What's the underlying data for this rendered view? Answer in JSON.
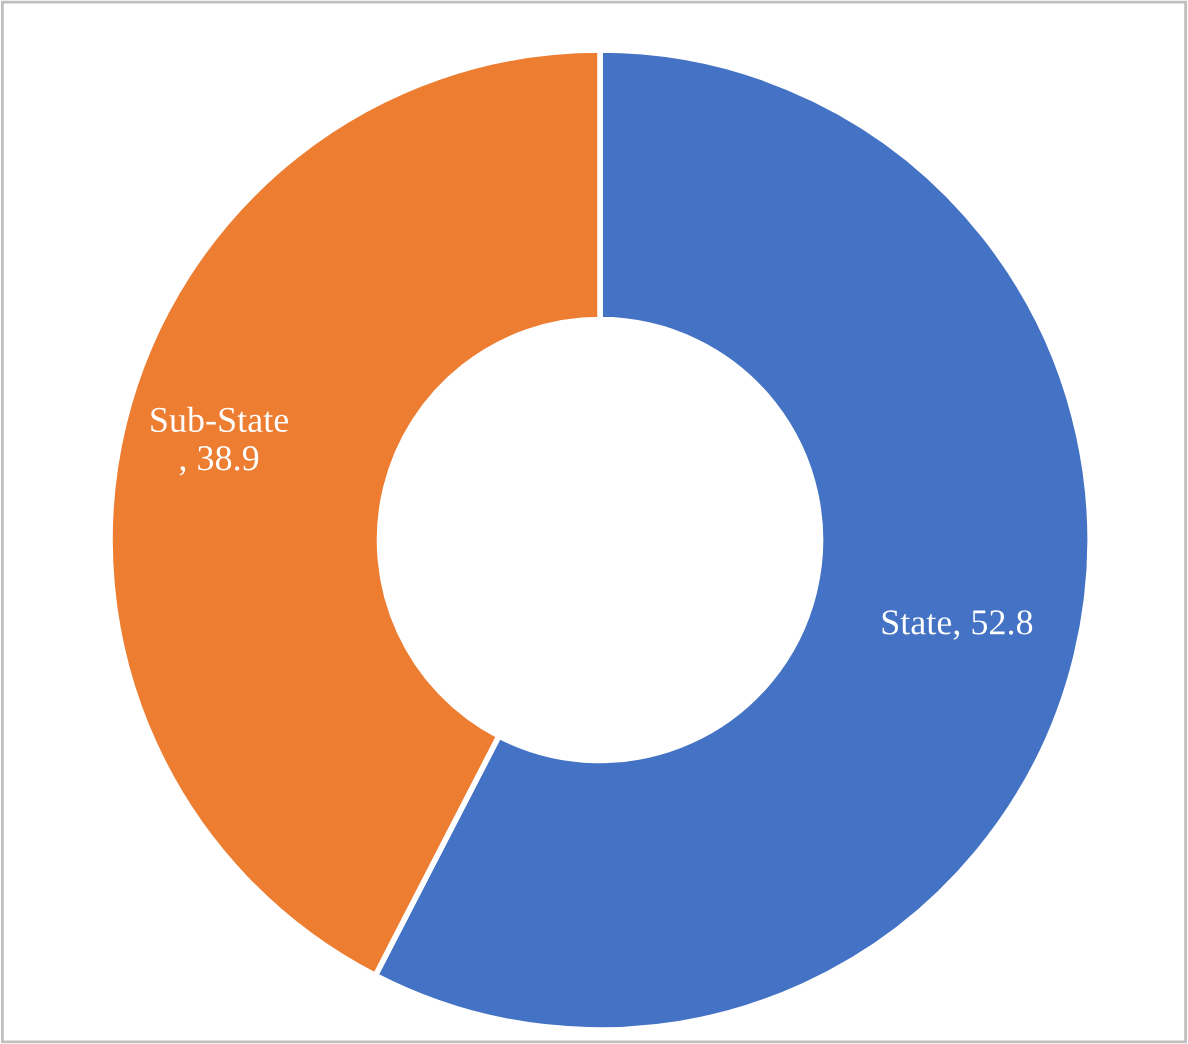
{
  "chart_data": {
    "type": "donut",
    "categories": [
      "State",
      "Sub-State"
    ],
    "values": [
      52.8,
      38.9
    ],
    "colors": [
      "#4472c4",
      "#ed7d31"
    ],
    "value_labels": [
      ", 52.8",
      ", 38.9"
    ],
    "legend": false
  }
}
